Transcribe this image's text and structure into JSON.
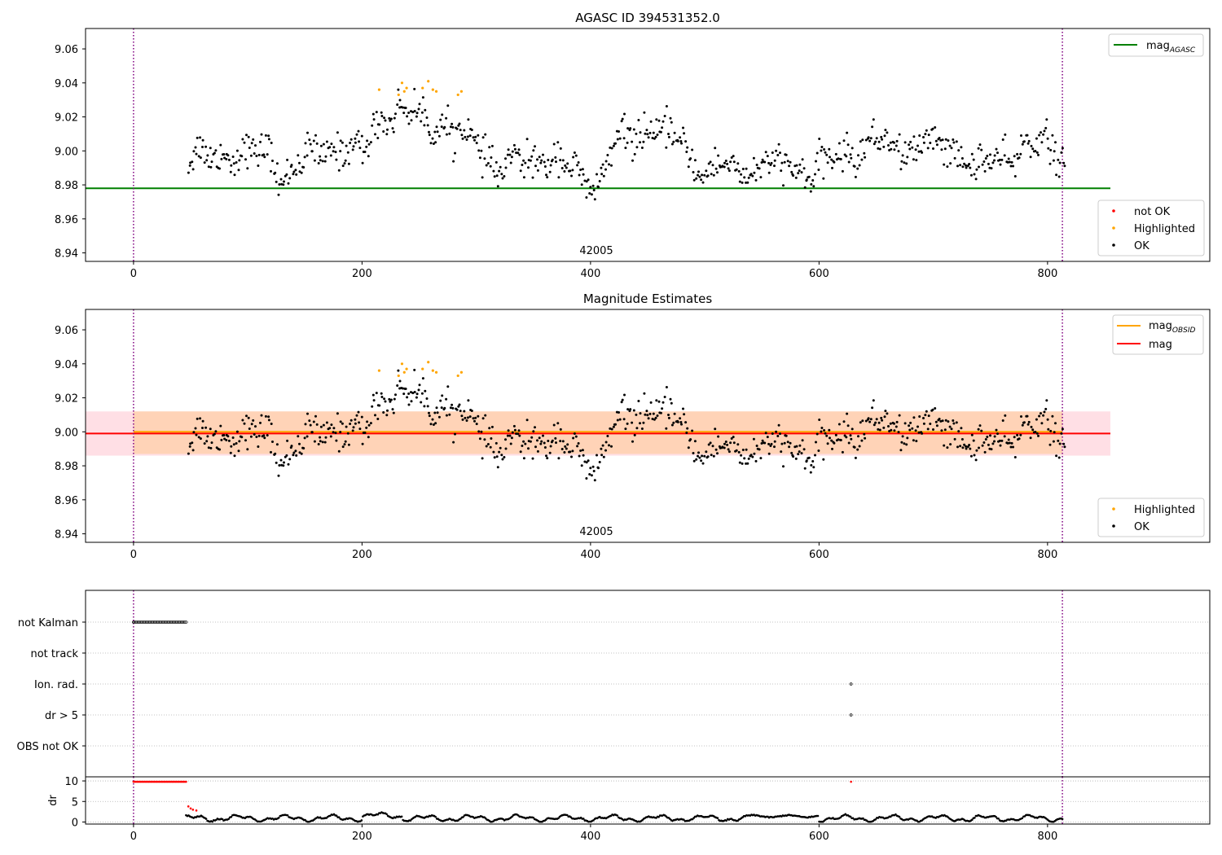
{
  "chart_data": [
    {
      "type": "scatter",
      "title": "AGASC ID 394531352.0",
      "xlim": [
        -42,
        942
      ],
      "ylim": [
        8.935,
        9.072
      ],
      "x_ticks": [
        0,
        200,
        400,
        600,
        800
      ],
      "y_ticks": [
        8.94,
        8.96,
        8.98,
        9.0,
        9.02,
        9.04,
        9.06
      ],
      "annotation": "42005",
      "obs_boundaries": [
        0,
        813
      ],
      "reference_lines": [
        {
          "name": "mag",
          "sub": "AGASC",
          "value": 8.978,
          "x_range": [
            -42,
            855
          ],
          "color": "#008000"
        }
      ],
      "legend_lines": [
        {
          "name": "mag",
          "sub": "AGASC",
          "color": "#008000"
        }
      ],
      "legend_points": [
        {
          "name": "not OK",
          "color": "#ff0000"
        },
        {
          "name": "Highlighted",
          "color": "#ffa500"
        },
        {
          "name": "OK",
          "color": "#000000"
        }
      ],
      "series": [
        {
          "label": "Highlighted",
          "color": "#ffa500",
          "x": [
            215,
            232,
            235,
            237,
            239,
            253,
            258,
            262,
            265,
            284,
            287
          ],
          "y": [
            9.036,
            9.033,
            9.04,
            9.035,
            9.037,
            9.037,
            9.041,
            9.036,
            9.035,
            9.033,
            9.035
          ]
        },
        {
          "label": "OK",
          "color": "#000000",
          "generated": true,
          "x_range": [
            48,
            815
          ],
          "n": 770,
          "trend_x": [
            48,
            80,
            100,
            120,
            130,
            150,
            170,
            200,
            215,
            240,
            260,
            275,
            300,
            320,
            350,
            370,
            390,
            405,
            420,
            445,
            460,
            480,
            500,
            520,
            550,
            580,
            595,
            620,
            650,
            680,
            710,
            740,
            760,
            790,
            815
          ],
          "trend_y": [
            8.994,
            9.0,
            8.996,
            9.001,
            8.983,
            8.994,
            9.003,
            8.998,
            9.021,
            9.022,
            9.019,
            9.012,
            9.006,
            8.988,
            8.996,
            8.995,
            8.985,
            8.98,
            9.0,
            9.014,
            9.01,
            9.004,
            8.987,
            8.99,
            8.99,
            8.991,
            8.986,
            8.998,
            9.005,
            9.002,
            9.004,
            8.99,
            8.995,
            9.005,
            8.998
          ],
          "scatter_sd": 0.0065
        }
      ]
    },
    {
      "type": "scatter",
      "title": "Magnitude Estimates",
      "xlim": [
        -42,
        942
      ],
      "ylim": [
        8.935,
        9.072
      ],
      "x_ticks": [
        0,
        200,
        400,
        600,
        800
      ],
      "y_ticks": [
        8.94,
        8.96,
        8.98,
        9.0,
        9.02,
        9.04,
        9.06
      ],
      "annotation": "42005",
      "obs_boundaries": [
        0,
        813
      ],
      "bands": [
        {
          "name": "mag band",
          "y_range": [
            8.986,
            9.012
          ],
          "x_range": [
            -42,
            855
          ],
          "color": "#ffc0cb",
          "alpha": 0.5
        },
        {
          "name": "mag OBSID band",
          "y_range": [
            8.987,
            9.012
          ],
          "x_range": [
            0,
            813
          ],
          "color": "#ffa500",
          "alpha": 0.2
        }
      ],
      "reference_lines": [
        {
          "name": "mag OBSID",
          "value": 9.0,
          "x_range": [
            0,
            813
          ],
          "color": "#ffa500"
        },
        {
          "name": "mag",
          "value": 8.999,
          "x_range": [
            -42,
            855
          ],
          "color": "#ff0000"
        }
      ],
      "legend_lines": [
        {
          "name": "mag",
          "sub": "OBSID",
          "color": "#ffa500"
        },
        {
          "name": "mag",
          "sub": "",
          "color": "#ff0000"
        }
      ],
      "legend_points": [
        {
          "name": "Highlighted",
          "color": "#ffa500"
        },
        {
          "name": "OK",
          "color": "#000000"
        }
      ]
    },
    {
      "type": "scatter",
      "title": "",
      "xlim": [
        -42,
        942
      ],
      "x_ticks": [
        0,
        200,
        400,
        600,
        800
      ],
      "categories": [
        "not Kalman",
        "not track",
        "Ion. rad.",
        "dr > 5",
        "OBS not OK"
      ],
      "obs_boundaries": [
        0,
        813
      ],
      "flag_points": [
        {
          "category": "not Kalman",
          "x_range": [
            0,
            46
          ],
          "n": 46
        },
        {
          "category": "Ion. rad.",
          "x": [
            628
          ]
        },
        {
          "category": "dr > 5",
          "x": [
            628
          ]
        }
      ]
    },
    {
      "type": "scatter",
      "title": "",
      "ylabel": "dr",
      "xlim": [
        -42,
        942
      ],
      "ylim": [
        -0.5,
        11
      ],
      "x_ticks": [
        0,
        200,
        400,
        600,
        800
      ],
      "y_ticks": [
        0,
        5,
        10
      ],
      "obs_boundaries": [
        0,
        813
      ],
      "not_ok_points": {
        "x_range": [
          0,
          46
        ],
        "y": 9.8,
        "extra_x": [
          628
        ],
        "tail": [
          [
            48,
            3.8
          ],
          [
            50,
            3.3
          ],
          [
            52,
            3.0
          ],
          [
            55,
            2.8
          ]
        ]
      },
      "ok_points": {
        "x_range": [
          46,
          813
        ],
        "n": 700,
        "y_max": 2.5
      }
    }
  ]
}
